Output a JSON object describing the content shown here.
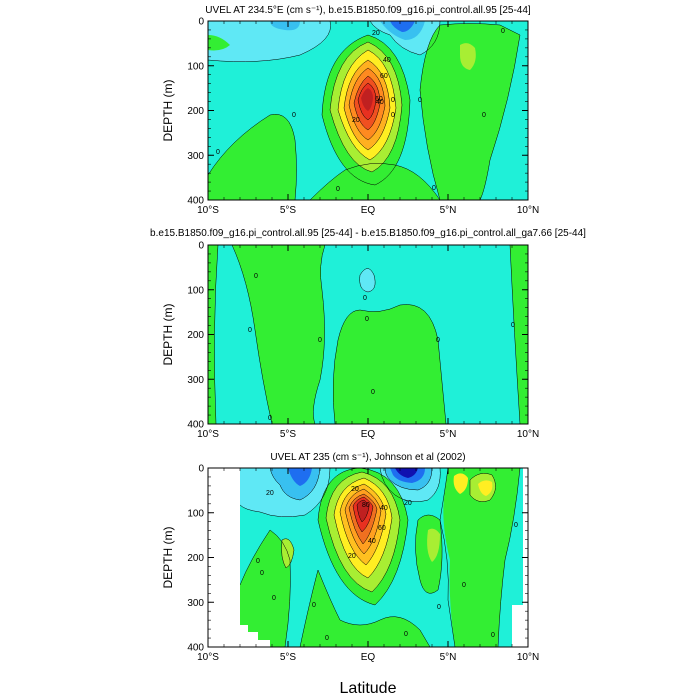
{
  "chart_data": [
    {
      "type": "heatmap",
      "title": "UVEL AT 234.5°E (cm s⁻¹), b.e15.B1850.f09_g16.pi_control.all.95 [25-44]",
      "xlabel": "",
      "ylabel": "DEPTH (m)",
      "xticks": [
        "10°S",
        "5°S",
        "EQ",
        "5°N",
        "10°N"
      ],
      "yticks": [
        "0",
        "100",
        "200",
        "300",
        "400"
      ],
      "xlim": [
        -10,
        10
      ],
      "ylim": [
        0,
        400
      ],
      "contour_labels": [
        "20",
        "40",
        "60",
        "60",
        "40",
        "20",
        "0",
        "0",
        "0",
        "0",
        "0",
        "0",
        "0",
        "0",
        "0"
      ],
      "core": {
        "lat": 0,
        "depth": 120,
        "max_value": 100
      }
    },
    {
      "type": "heatmap",
      "title": "b.e15.B1850.f09_g16.pi_control.all.95 [25-44] - b.e15.B1850.f09_g16.pi_control.all_ga7.66 [25-44]",
      "xlabel": "",
      "ylabel": "DEPTH (m)",
      "xticks": [
        "10°S",
        "5°S",
        "EQ",
        "5°N",
        "10°N"
      ],
      "yticks": [
        "0",
        "100",
        "200",
        "300",
        "400"
      ],
      "xlim": [
        -10,
        10
      ],
      "ylim": [
        0,
        400
      ],
      "contour_labels": [
        "0",
        "0",
        "0",
        "0",
        "0",
        "0",
        "0",
        "0",
        "0"
      ]
    },
    {
      "type": "heatmap",
      "title": "UVEL AT 235 (cm s⁻¹), Johnson et al (2002)",
      "xlabel": "Latitude",
      "ylabel": "DEPTH (m)",
      "xticks": [
        "10°S",
        "5°S",
        "EQ",
        "5°N",
        "10°N"
      ],
      "yticks": [
        "0",
        "100",
        "200",
        "300",
        "400"
      ],
      "xlim": [
        -10,
        10
      ],
      "ylim": [
        0,
        400
      ],
      "contour_labels": [
        "20",
        "20",
        "40",
        "60",
        "80",
        "20",
        "40",
        "20",
        "0",
        "0",
        "0",
        "0",
        "0",
        "0",
        "0",
        "0",
        "0",
        "0"
      ],
      "core": {
        "lat": -0.2,
        "depth": 90,
        "max_value": 100
      }
    }
  ],
  "colors": {
    "cyan": "#1ff0d8",
    "lightcyan": "#5fe8f5",
    "skyblue": "#38c0f0",
    "blue": "#1e6ef0",
    "darkblue": "#1010b0",
    "green": "#33ee33",
    "lightgreen": "#a8ee33",
    "yellow": "#ffee22",
    "orange": "#ffa020",
    "red": "#e83020",
    "darkred": "#c02020"
  }
}
